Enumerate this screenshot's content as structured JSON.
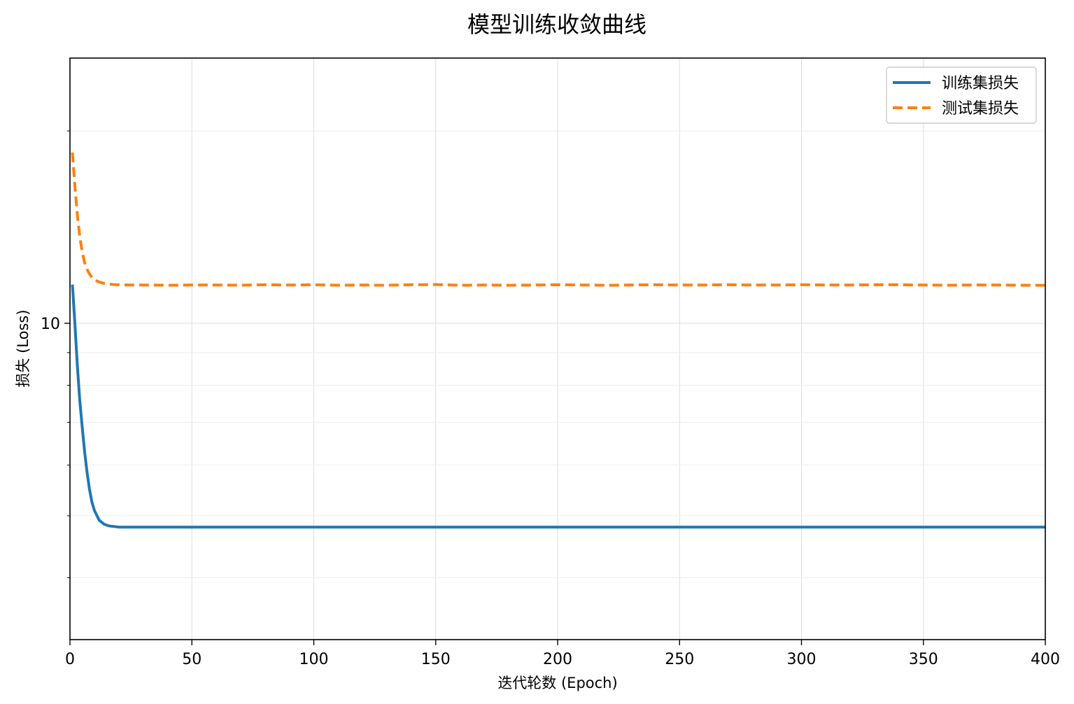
{
  "chart_data": {
    "type": "line",
    "title": "模型训练收敛曲线",
    "xlabel": "迭代轮数 (Epoch)",
    "ylabel": "损失 (Loss)",
    "xlim": [
      0,
      400
    ],
    "ylim": [
      3.2,
      26
    ],
    "yscale": "log",
    "grid": true,
    "legend_position": "top-right",
    "x_ticks": [
      0,
      50,
      100,
      150,
      200,
      250,
      300,
      350,
      400
    ],
    "y_ticks": [
      10
    ],
    "y_minor_ticks": [
      4,
      5,
      6,
      7,
      8,
      9,
      20
    ],
    "series": [
      {
        "name": "训练集损失",
        "color": "#1f77b4",
        "style": "solid",
        "x": [
          1,
          2,
          3,
          4,
          5,
          6,
          7,
          8,
          9,
          10,
          12,
          14,
          16,
          18,
          20,
          25,
          30,
          50,
          100,
          150,
          200,
          250,
          300,
          350,
          400
        ],
        "y": [
          11.5,
          10.0,
          8.6,
          7.6,
          6.9,
          6.3,
          5.85,
          5.5,
          5.25,
          5.1,
          4.92,
          4.85,
          4.82,
          4.81,
          4.8,
          4.8,
          4.8,
          4.8,
          4.8,
          4.8,
          4.8,
          4.8,
          4.8,
          4.8,
          4.8
        ]
      },
      {
        "name": "测试集损失",
        "color": "#ff7f0e",
        "style": "dashed",
        "x": [
          1,
          2,
          3,
          4,
          5,
          6,
          7,
          8,
          9,
          10,
          12,
          14,
          16,
          18,
          20,
          25,
          30,
          40,
          50,
          60,
          70,
          80,
          90,
          100,
          110,
          120,
          130,
          140,
          150,
          160,
          170,
          180,
          190,
          200,
          210,
          220,
          230,
          240,
          250,
          260,
          270,
          280,
          290,
          300,
          310,
          320,
          330,
          340,
          350,
          360,
          370,
          380,
          390,
          400
        ],
        "y": [
          18.5,
          16.4,
          14.8,
          13.7,
          12.95,
          12.45,
          12.15,
          11.95,
          11.8,
          11.7,
          11.6,
          11.55,
          11.52,
          11.5,
          11.49,
          11.48,
          11.48,
          11.47,
          11.48,
          11.48,
          11.47,
          11.49,
          11.48,
          11.49,
          11.47,
          11.48,
          11.47,
          11.49,
          11.5,
          11.47,
          11.48,
          11.47,
          11.48,
          11.49,
          11.48,
          11.47,
          11.48,
          11.49,
          11.48,
          11.48,
          11.49,
          11.48,
          11.48,
          11.49,
          11.48,
          11.48,
          11.49,
          11.49,
          11.48,
          11.47,
          11.48,
          11.48,
          11.47,
          11.47
        ]
      }
    ]
  }
}
